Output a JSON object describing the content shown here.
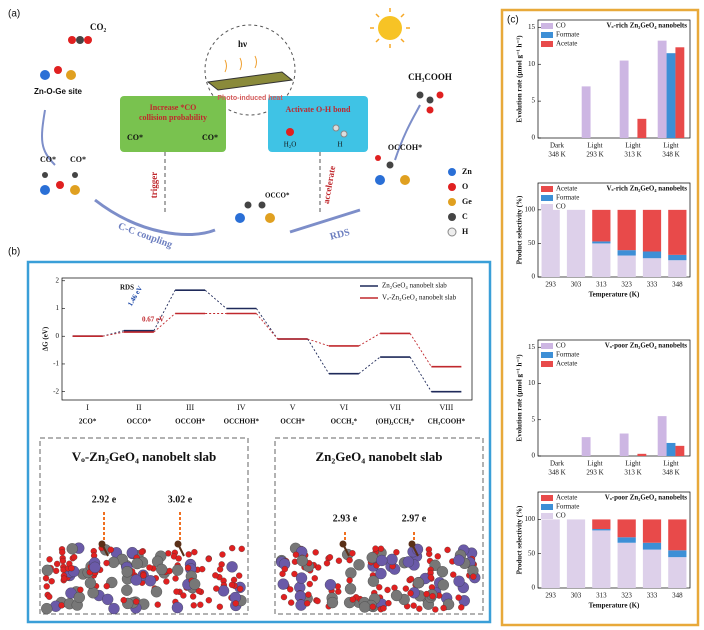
{
  "panel_labels": [
    "(a)",
    "(b)",
    "(c)"
  ],
  "diagram": {
    "co2": "CO₂",
    "site": "Zn-O-Ge site",
    "co_left": "CO*",
    "co_right": "CO*",
    "hv": "hν",
    "heat": "Photo-induced heat",
    "box_left": [
      "Increase *CO",
      "collision probability"
    ],
    "box_left_co": [
      "CO*",
      "CO*"
    ],
    "box_right": "Activate O-H bond",
    "h2o": "H₂O",
    "h": "H",
    "trigger": "trigger",
    "accelerate": "accelerate",
    "cc": "C-C coupling",
    "occo": "OCCO*",
    "rds": "RDS",
    "occoh": "OCCOH*",
    "product": "CH₃COOH",
    "atoms": [
      "Zn",
      "O",
      "Ge",
      "C",
      "H"
    ]
  },
  "slabs": [
    {
      "title": "Vₒ-Zn₂GeO₄ nanobelt slab",
      "charges": [
        "2.92 e",
        "3.02 e"
      ]
    },
    {
      "title": "Zn₂GeO₄ nanobelt slab",
      "charges": [
        "2.93 e",
        "2.97 e"
      ]
    }
  ],
  "chart_data": [
    {
      "type": "energy",
      "ylabel": "ΔG (eV)",
      "categories": [
        "I",
        "II",
        "III",
        "IV",
        "V",
        "VI",
        "VII",
        "VIII"
      ],
      "category_sublabels": [
        "2CO*",
        "OCCO*",
        "OCCOH*",
        "OCCHOH*",
        "OCCH*",
        "OCCH₂*",
        "(OH)₂CCH₂*",
        "CH₃COOH*"
      ],
      "series": [
        {
          "name": "Zn₂GeO₄ nanobelt slab",
          "color": "#1f2a5a",
          "values": [
            0,
            0.2,
            1.66,
            1.0,
            -0.1,
            -1.35,
            -0.75,
            -2.0
          ]
        },
        {
          "name": "Vₒ-Zn₂GeO₄ nanobelt slab",
          "color": "#c0282d",
          "values": [
            0,
            0.15,
            0.82,
            0.82,
            -0.1,
            -0.35,
            0.1,
            -1.1
          ]
        }
      ],
      "annotations": [
        "RDS",
        "1.46 eV",
        "0.67 eV"
      ],
      "ylim": [
        -2.3,
        2.1
      ],
      "yticks": [
        2,
        1,
        0,
        -1,
        -2
      ],
      "legend": "upper right"
    },
    {
      "type": "bar",
      "title": "Vₒ-rich Zn₂GeO₄ nanobelts",
      "ylabel": "Evolution rate (μmol g⁻¹ h⁻¹)",
      "categories": [
        "Dark",
        "Light",
        "Light",
        "Light"
      ],
      "category_sublabels": [
        "348 K",
        "293 K",
        "313 K",
        "348 K"
      ],
      "series": [
        {
          "name": "CO",
          "color": "#cdb6e3",
          "values": [
            0,
            7,
            10.5,
            13.2
          ]
        },
        {
          "name": "Formate",
          "color": "#3d8fd6",
          "values": [
            0,
            0,
            0,
            11.5
          ]
        },
        {
          "name": "Acetate",
          "color": "#e84a4a",
          "values": [
            0,
            0,
            2.6,
            12.3
          ]
        }
      ],
      "ylim": [
        0,
        16
      ],
      "yticks": [
        0,
        5,
        10,
        15
      ],
      "legend": "upper left"
    },
    {
      "type": "stacked_bar",
      "title": "Vₒ-rich Zn₂GeO₄ nanobelts",
      "xlabel": "Temperature (K)",
      "ylabel": "Product selectivity (%)",
      "categories": [
        "293",
        "303",
        "313",
        "323",
        "333",
        "348"
      ],
      "series": [
        {
          "name": "Acetate",
          "color": "#e84a4a",
          "values": [
            0,
            0,
            47,
            60,
            62,
            67
          ]
        },
        {
          "name": "Formate",
          "color": "#3d8fd6",
          "values": [
            0,
            0,
            3,
            8,
            10,
            8
          ]
        },
        {
          "name": "CO",
          "color": "#ddd0ea",
          "values": [
            100,
            100,
            50,
            32,
            28,
            25
          ]
        }
      ],
      "ylim": [
        0,
        140
      ],
      "yticks": [
        0,
        50,
        100
      ],
      "legend": "upper left"
    },
    {
      "type": "bar",
      "title": "Vₒ-poor Zn₂GeO₄ nanobelts",
      "ylabel": "Evolution rate (μmol g⁻¹ h⁻¹)",
      "categories": [
        "Dark",
        "Light",
        "Light",
        "Light"
      ],
      "category_sublabels": [
        "348 K",
        "293 K",
        "313 K",
        "348 K"
      ],
      "series": [
        {
          "name": "CO",
          "color": "#cdb6e3",
          "values": [
            0,
            2.6,
            3.1,
            5.5
          ]
        },
        {
          "name": "Formate",
          "color": "#3d8fd6",
          "values": [
            0,
            0,
            0,
            1.8
          ]
        },
        {
          "name": "Acetate",
          "color": "#e84a4a",
          "values": [
            0,
            0,
            0.3,
            1.4
          ]
        }
      ],
      "ylim": [
        0,
        16
      ],
      "yticks": [
        0,
        5,
        10,
        15
      ],
      "legend": "upper left"
    },
    {
      "type": "stacked_bar",
      "title": "Vₒ-poor Zn₂GeO₄ nanobelts",
      "xlabel": "Temperature (K)",
      "ylabel": "Product selectivity (%)",
      "categories": [
        "293",
        "303",
        "313",
        "323",
        "333",
        "348"
      ],
      "series": [
        {
          "name": "Acetate",
          "color": "#e84a4a",
          "values": [
            0,
            0,
            14,
            26,
            34,
            45
          ]
        },
        {
          "name": "Formate",
          "color": "#3d8fd6",
          "values": [
            0,
            0,
            2,
            8,
            10,
            10
          ]
        },
        {
          "name": "CO",
          "color": "#ddd0ea",
          "values": [
            100,
            100,
            84,
            66,
            56,
            45
          ]
        }
      ],
      "ylim": [
        0,
        140
      ],
      "yticks": [
        0,
        50,
        100
      ],
      "legend": "upper left"
    }
  ]
}
